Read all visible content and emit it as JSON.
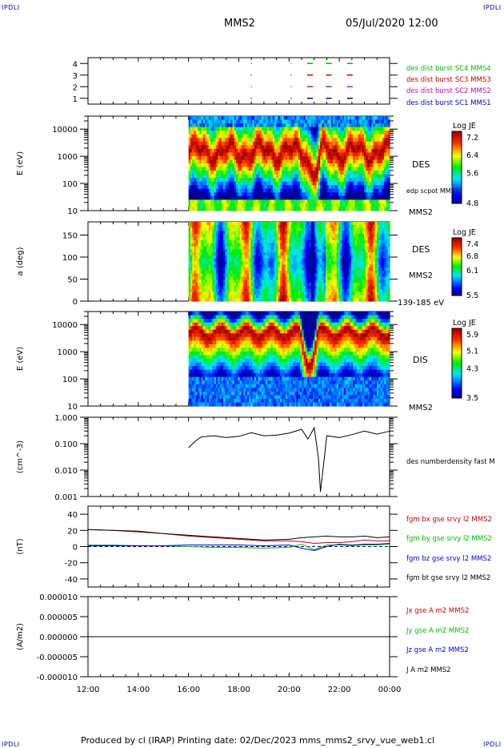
{
  "corners": {
    "tl": "IPDLI",
    "tr": "IPDLI",
    "bl": "IPDLI",
    "br": "IPDLI"
  },
  "header": {
    "spacecraft": "MMS2",
    "datetime": "05/Jul/2020 12:00"
  },
  "footer": {
    "text": "Produced by cl (IRAP)   Printing date: 02/Dec/2023   mms_mms2_srvy_vue_web1.cl"
  },
  "colors": {
    "mms1": "#0000cc",
    "mms2": "#cc00cc",
    "mms3": "#cc0000",
    "mms4": "#00bb00",
    "bx": "#cc0000",
    "by": "#00bb00",
    "bz": "#0000cc",
    "bt": "#000000"
  },
  "chart_data": [
    {
      "type": "scatter",
      "panel": "burst-availability",
      "yticks": [
        "1",
        "2",
        "3",
        "4"
      ],
      "ylim": [
        0.5,
        4.5
      ],
      "x_range": [
        "12:00",
        "00:00"
      ],
      "legend_placement": "right",
      "series": [
        {
          "name": "des dist burst SC1 MMS1",
          "y": 1,
          "color": "#0000cc",
          "x": [
            "18:30",
            "20:05",
            "20:50",
            "21:35",
            "22:25"
          ]
        },
        {
          "name": "des dist burst SC2 MMS2",
          "y": 2,
          "color": "#cc00cc",
          "x": [
            "18:30",
            "20:05",
            "20:50",
            "21:35",
            "22:25"
          ]
        },
        {
          "name": "des dist burst SC3 MMS3",
          "y": 3,
          "color": "#cc0000",
          "x": [
            "18:30",
            "20:05",
            "20:50",
            "21:35",
            "22:25"
          ]
        },
        {
          "name": "des dist burst SC4 MMS4",
          "y": 4,
          "color": "#00bb00",
          "x": [
            "18:30",
            "20:05",
            "20:50",
            "21:35",
            "22:25"
          ]
        }
      ]
    },
    {
      "type": "heatmap",
      "panel": "des-energy",
      "ylabel": "E (eV)",
      "ylog": true,
      "ylim": [
        10,
        30000
      ],
      "yticks": [
        "10",
        "100",
        "1000",
        "10000"
      ],
      "data_start": "16:00",
      "label": "DES",
      "overlay_label": "edp scpot MMS2",
      "spacecraft_label": "MMS2",
      "colorbar": {
        "title": "Log JE",
        "ticks": [
          "4.8",
          "5.6",
          "6.4",
          "7.2"
        ]
      }
    },
    {
      "type": "heatmap",
      "panel": "des-pitch-angle",
      "ylabel": "a (deg)",
      "ylim": [
        0,
        180
      ],
      "yticks": [
        "0",
        "50",
        "100",
        "150"
      ],
      "data_start": "16:00",
      "label": "DES",
      "spacecraft_label": "MMS2",
      "energy_label": "139-185 eV",
      "colorbar": {
        "title": "Log JE",
        "ticks": [
          "5.5",
          "6.1",
          "6.8",
          "7.4"
        ]
      }
    },
    {
      "type": "heatmap",
      "panel": "dis-energy",
      "ylabel": "E (eV)",
      "ylog": true,
      "ylim": [
        10,
        30000
      ],
      "yticks": [
        "10",
        "100",
        "1000",
        "10000"
      ],
      "data_start": "16:00",
      "label": "DIS",
      "spacecraft_label": "MMS2",
      "colorbar": {
        "title": "Log JE",
        "ticks": [
          "3.5",
          "4.3",
          "5.1",
          "5.9"
        ]
      }
    },
    {
      "type": "line",
      "panel": "density",
      "ylabel": "(cm^-3)",
      "ylog": true,
      "ylim": [
        0.001,
        1.0
      ],
      "yticks": [
        "0.001",
        "0.010",
        "0.100",
        "1.000"
      ],
      "series": [
        {
          "name": "des numberdensity fast M",
          "color": "#000000",
          "x": [
            "16:00",
            "16:15",
            "16:30",
            "17:00",
            "17:30",
            "18:00",
            "18:30",
            "19:00",
            "19:30",
            "20:00",
            "20:30",
            "20:45",
            "21:00",
            "21:10",
            "21:15",
            "21:30",
            "22:00",
            "22:30",
            "23:00",
            "23:30",
            "00:00"
          ],
          "y": [
            0.07,
            0.12,
            0.18,
            0.2,
            0.17,
            0.19,
            0.26,
            0.2,
            0.21,
            0.25,
            0.35,
            0.15,
            0.4,
            0.03,
            0.0015,
            0.2,
            0.17,
            0.22,
            0.3,
            0.23,
            0.3
          ]
        }
      ]
    },
    {
      "type": "line",
      "panel": "magnetic-field",
      "ylabel": "(nT)",
      "ylim": [
        -50,
        50
      ],
      "yticks": [
        "-40",
        "-20",
        "0",
        "20",
        "40"
      ],
      "x": [
        "12:00",
        "13:00",
        "14:00",
        "15:00",
        "16:00",
        "17:00",
        "18:00",
        "19:00",
        "20:00",
        "20:30",
        "21:00",
        "21:30",
        "22:00",
        "22:30",
        "23:00",
        "23:30",
        "00:00"
      ],
      "series": [
        {
          "name": "fgm bx gse srvy l2 MMS2",
          "color": "#cc0000",
          "values": [
            21,
            20,
            18,
            16,
            13,
            11,
            9,
            7,
            7,
            6,
            4,
            5,
            5,
            6,
            8,
            7,
            7
          ]
        },
        {
          "name": "fgm by gse srvy l2 MMS2",
          "color": "#00bb00",
          "values": [
            2,
            2,
            1,
            1,
            0,
            -1,
            -1,
            -2,
            -1,
            3,
            -4,
            2,
            2,
            1,
            2,
            2,
            3
          ]
        },
        {
          "name": "fgm bz gse srvy l2 MMS2",
          "color": "#0000cc",
          "values": [
            1,
            1,
            1,
            1,
            2,
            2,
            2,
            1,
            2,
            -2,
            -5,
            0,
            3,
            2,
            3,
            3,
            4
          ]
        },
        {
          "name": "fgm bt gse srvy l2 MMS2",
          "color": "#000000",
          "values": [
            21,
            20,
            19,
            16,
            14,
            12,
            10,
            8,
            9,
            11,
            12,
            13,
            12,
            12,
            13,
            11,
            12
          ]
        }
      ]
    },
    {
      "type": "line",
      "panel": "current-density",
      "ylabel": "(A/m2)",
      "ylim": [
        -1e-05,
        1e-05
      ],
      "yticks": [
        "-0.000010",
        "-0.000005",
        "0.000000",
        "0.000005",
        "0.000010"
      ],
      "x": [
        "12:00",
        "16:00",
        "20:00",
        "00:00"
      ],
      "series": [
        {
          "name": "Jx gse A m2 MMS2",
          "color": "#cc0000",
          "values": [
            0,
            0,
            0,
            0
          ]
        },
        {
          "name": "Jy gse A m2 MMS2",
          "color": "#00bb00",
          "values": [
            0,
            0,
            0,
            0
          ]
        },
        {
          "name": "Jz gse A m2 MMS2",
          "color": "#0000cc",
          "values": [
            0,
            0,
            0,
            0
          ]
        },
        {
          "name": "J A m2 MMS2",
          "color": "#000000",
          "values": [
            0,
            0,
            0,
            0
          ]
        }
      ]
    }
  ],
  "x_axis": {
    "ticks": [
      "12:00",
      "14:00",
      "16:00",
      "18:00",
      "20:00",
      "22:00",
      "00:00"
    ]
  }
}
